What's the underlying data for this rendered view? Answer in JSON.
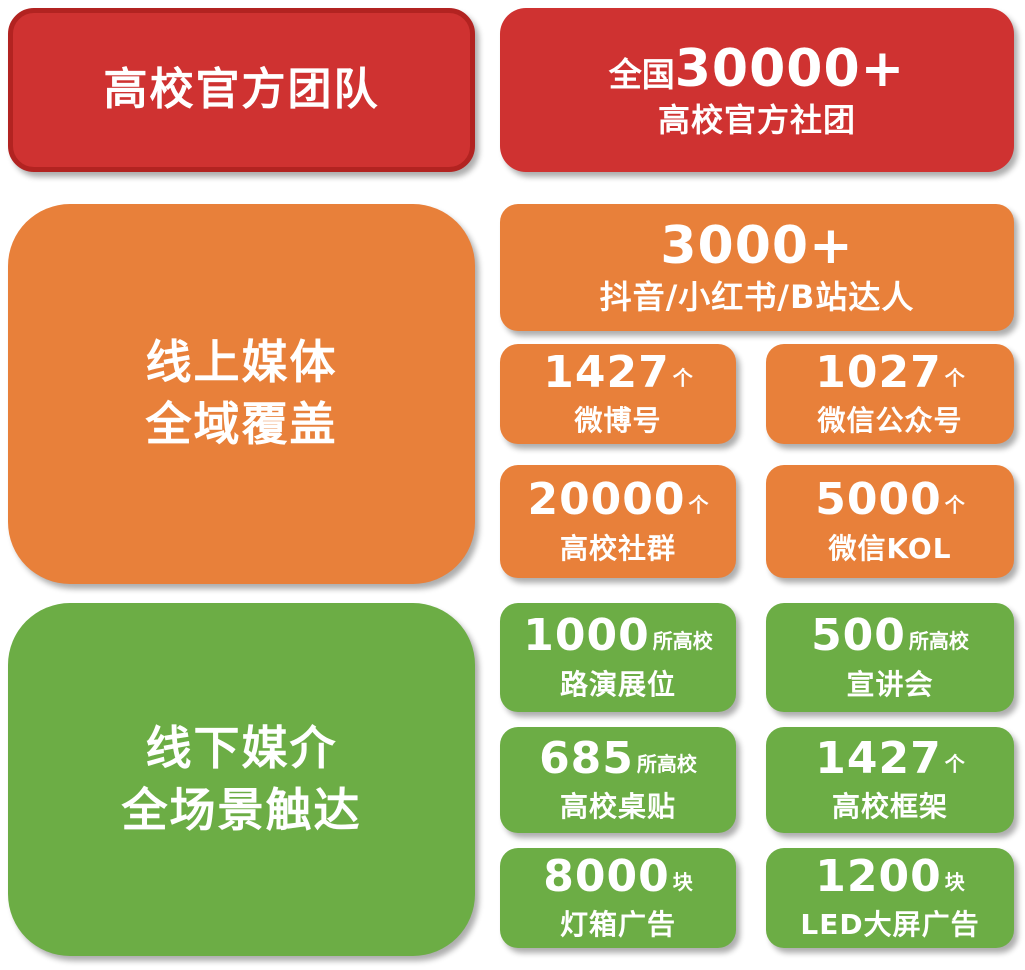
{
  "palette": {
    "red": "#cf3231",
    "red_border": "#b22321",
    "orange": "#e8803a",
    "green": "#6cad45",
    "text": "#ffffff",
    "background": "#ffffff"
  },
  "team": {
    "header": {
      "line1": "高校官方团队"
    },
    "stat": {
      "prefix": "全国",
      "number": "30000+",
      "label": "高校官方社团"
    }
  },
  "online": {
    "header": {
      "line1": "线上媒体",
      "line2": "全域覆盖"
    },
    "feature": {
      "number": "3000+",
      "label": "抖音/小红书/B站达人"
    },
    "stats": [
      {
        "number": "1427",
        "unit": "个",
        "label": "微博号"
      },
      {
        "number": "1027",
        "unit": "个",
        "label": "微信公众号"
      },
      {
        "number": "20000",
        "unit": "个",
        "label": "高校社群"
      },
      {
        "number": "5000",
        "unit": "个",
        "label": "微信KOL"
      }
    ]
  },
  "offline": {
    "header": {
      "line1": "线下媒介",
      "line2": "全场景触达"
    },
    "stats": [
      {
        "number": "1000",
        "unit": "所高校",
        "label": "路演展位"
      },
      {
        "number": "500",
        "unit": "所高校",
        "label": "宣讲会"
      },
      {
        "number": "685",
        "unit": "所高校",
        "label": "高校桌贴"
      },
      {
        "number": "1427",
        "unit": "个",
        "label": "高校框架"
      },
      {
        "number": "8000",
        "unit": "块",
        "label": "灯箱广告"
      },
      {
        "number": "1200",
        "unit": "块",
        "label": "LED大屏广告"
      }
    ]
  }
}
